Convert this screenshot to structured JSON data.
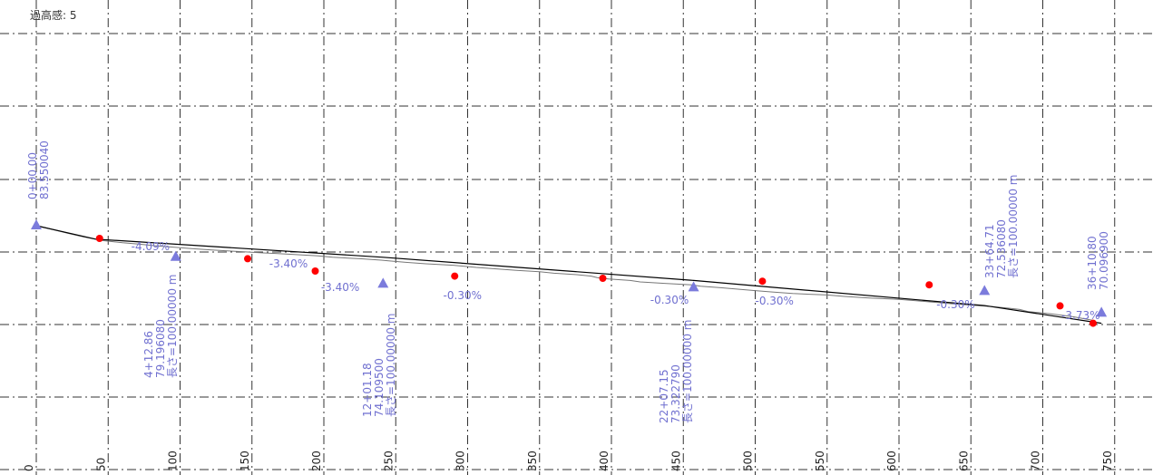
{
  "header": {
    "exaggeration_text": "過高感: 5"
  },
  "colors": {
    "grid": "#333333",
    "ground": "#777777",
    "profile": "#000000",
    "pvi": "#7b7bdc",
    "control": "#ff0000",
    "annotation": "#7070d0"
  },
  "chart_data": {
    "type": "line",
    "title": "",
    "xlabel": "",
    "ylabel": "",
    "x_ticks": [
      0,
      50,
      100,
      150,
      200,
      250,
      300,
      350,
      400,
      450,
      500,
      550,
      600,
      650,
      700,
      750
    ],
    "tick_labels": [
      "0",
      "50",
      "100",
      "150",
      "200",
      "250",
      "300",
      "350",
      "400",
      "450",
      "500",
      "550",
      "600",
      "650",
      "700",
      "750"
    ],
    "grid": true,
    "series": [
      {
        "role": "ground",
        "x": [
          0,
          12,
          22,
          33,
          46,
          60,
          72,
          82,
          95,
          108,
          122,
          140,
          158,
          168,
          178,
          196,
          206,
          225,
          240,
          245,
          257,
          271,
          290,
          306,
          320,
          334,
          350,
          360,
          376,
          386,
          390,
          398,
          413,
          420,
          437,
          456,
          462,
          476,
          488,
          500,
          513,
          526,
          550,
          562,
          578,
          600,
          612,
          624,
          636,
          650,
          665,
          675,
          684,
          690,
          706,
          721,
          735
        ],
        "y": [
          83.6,
          83.0,
          82.5,
          82.0,
          81.5,
          81.2,
          81.0,
          80.8,
          80.6,
          80.4,
          80.2,
          80.0,
          79.8,
          79.7,
          79.6,
          79.4,
          79.2,
          79.0,
          78.8,
          78.7,
          78.5,
          78.3,
          78.1,
          77.8,
          77.6,
          77.4,
          77.2,
          77.0,
          76.8,
          76.6,
          76.4,
          76.2,
          76.0,
          75.8,
          75.6,
          75.4,
          75.2,
          75.0,
          74.8,
          74.6,
          74.4,
          74.2,
          74.0,
          73.8,
          73.6,
          73.4,
          73.2,
          73.0,
          72.8,
          72.6,
          72.4,
          72.2,
          72.0,
          71.7,
          71.4,
          71.0,
          70.5
        ]
      },
      {
        "role": "design-profile",
        "x": [
          0,
          41.29,
          241.18,
          457.15,
          659.47,
          740.8
        ],
        "y": [
          83.55,
          81.7,
          79.2,
          76.0,
          72.54,
          70.1
        ]
      }
    ],
    "pvi_points": [
      {
        "x": 0,
        "y": 83.55
      },
      {
        "x": 97,
        "y": 79.2
      },
      {
        "x": 241.18,
        "y": 75.5
      },
      {
        "x": 457.15,
        "y": 75.0
      },
      {
        "x": 659.47,
        "y": 74.5
      },
      {
        "x": 740.8,
        "y": 71.5
      }
    ],
    "control_points": [
      {
        "x": 44,
        "y": 81.8
      },
      {
        "x": 147,
        "y": 79.0
      },
      {
        "x": 194,
        "y": 77.3
      },
      {
        "x": 291,
        "y": 76.6
      },
      {
        "x": 394,
        "y": 76.3
      },
      {
        "x": 505,
        "y": 75.9
      },
      {
        "x": 621,
        "y": 75.4
      },
      {
        "x": 712,
        "y": 72.5
      },
      {
        "x": 735,
        "y": 70.1
      }
    ],
    "station_labels": [
      {
        "lines": [
          "0+00.00",
          "83.550040"
        ]
      },
      {
        "lines": [
          "4+12.86",
          "79.196080",
          "長さ=100.00000 m"
        ]
      },
      {
        "lines": [
          "12+01.18",
          "74.109500",
          "長さ=100.00000 m"
        ]
      },
      {
        "lines": [
          "22+07.15",
          "73.322790",
          "長さ=100.00000 m"
        ]
      },
      {
        "lines": [
          "33+64.71",
          "72.536080",
          "長さ=100.00000 m"
        ]
      },
      {
        "lines": [
          "36+10.80",
          "70.096900"
        ]
      }
    ],
    "grade_labels": [
      "-4.09%",
      "-3.40%",
      "-3.40%",
      "-0.30%",
      "-0.30%",
      "-0.30%",
      "-0.30%",
      "-3.73%"
    ]
  }
}
